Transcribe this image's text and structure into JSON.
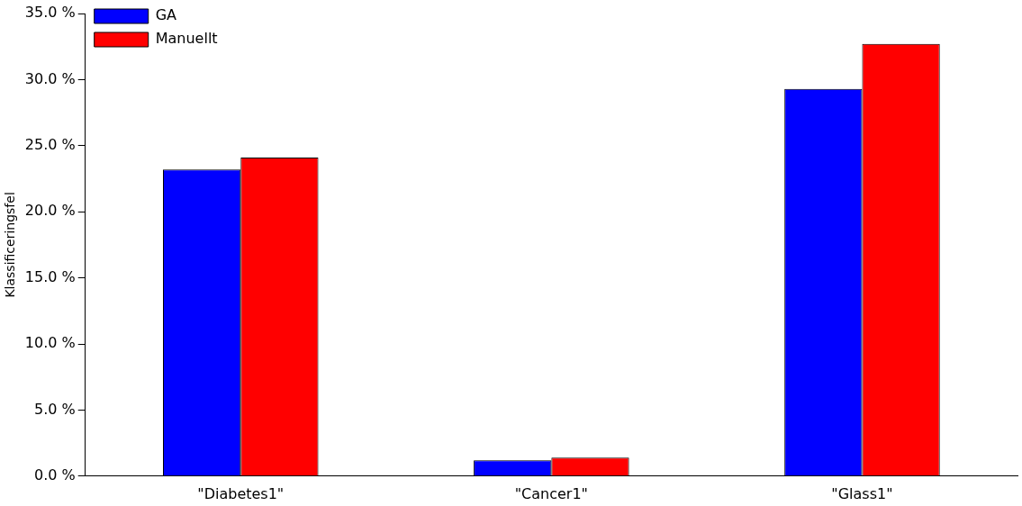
{
  "chart_data": {
    "type": "bar",
    "ylabel": "Klassificeringsfel",
    "categories": [
      "\"Diabetes1\"",
      "\"Cancer1\"",
      "\"Glass1\""
    ],
    "series": [
      {
        "name": "GA",
        "color": "#0000ff",
        "values": [
          23.2,
          1.2,
          29.3
        ]
      },
      {
        "name": "Manuellt",
        "color": "#ff0000",
        "values": [
          24.1,
          1.4,
          32.7
        ]
      }
    ],
    "ylim": [
      0,
      35
    ],
    "yticks": [
      {
        "value": 0,
        "label": "0.0 %"
      },
      {
        "value": 5,
        "label": "5.0 %"
      },
      {
        "value": 10,
        "label": "10.0 %"
      },
      {
        "value": 15,
        "label": "15.0 %"
      },
      {
        "value": 20,
        "label": "20.0 %"
      },
      {
        "value": 25,
        "label": "25.0 %"
      },
      {
        "value": 30,
        "label": "30.0 %"
      },
      {
        "value": 35,
        "label": "35.0 %"
      }
    ],
    "grid": false,
    "legend": "top left"
  }
}
